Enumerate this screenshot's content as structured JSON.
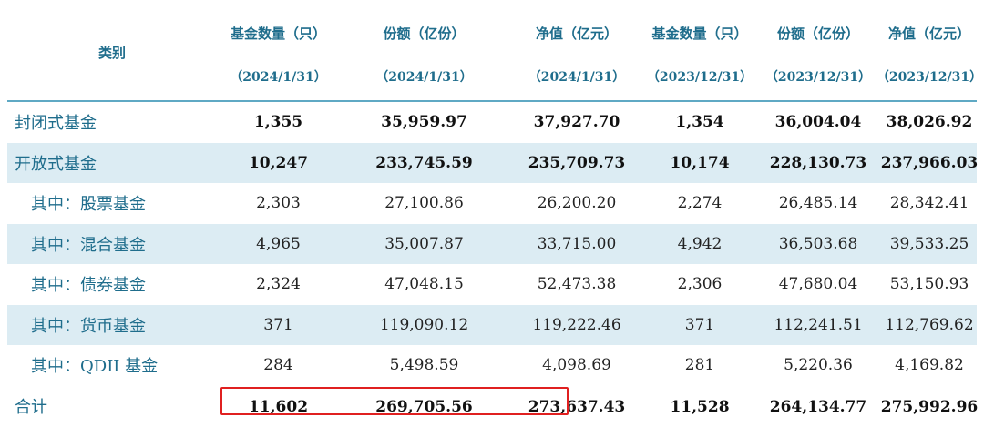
{
  "header": {
    "category": "类别",
    "columns": [
      {
        "title": "基金数量（只）",
        "date": "（2024/1/31）"
      },
      {
        "title": "份额（亿份）",
        "date": "（2024/1/31）"
      },
      {
        "title": "净值（亿元）",
        "date": "（2024/1/31）"
      },
      {
        "title": "基金数量（只）",
        "date": "（2023/12/31）"
      },
      {
        "title": "份额（亿份）",
        "date": "（2023/12/31）"
      },
      {
        "title": "净值（亿元）",
        "date": "（2023/12/31）"
      }
    ]
  },
  "rows": [
    {
      "name": "封闭式基金",
      "values": [
        "1,355",
        "35,959.97",
        "37,927.70",
        "1,354",
        "36,004.04",
        "38,026.92"
      ]
    },
    {
      "name": "开放式基金",
      "values": [
        "10,247",
        "233,745.59",
        "235,709.73",
        "10,174",
        "228,130.73",
        "237,966.03"
      ]
    },
    {
      "name": "其中：股票基金",
      "values": [
        "2,303",
        "27,100.86",
        "26,200.20",
        "2,274",
        "26,485.14",
        "28,342.41"
      ]
    },
    {
      "name": "其中：混合基金",
      "values": [
        "4,965",
        "35,007.87",
        "33,715.00",
        "4,942",
        "36,503.68",
        "39,533.25"
      ]
    },
    {
      "name": "其中：债券基金",
      "values": [
        "2,324",
        "47,048.15",
        "52,473.38",
        "2,306",
        "47,680.04",
        "53,150.93"
      ]
    },
    {
      "name": "其中：货币基金",
      "values": [
        "371",
        "119,090.12",
        "119,222.46",
        "371",
        "112,241.51",
        "112,769.62"
      ]
    },
    {
      "name": "其中：QDII 基金",
      "values": [
        "284",
        "5,498.59",
        "4,098.69",
        "281",
        "5,220.36",
        "4,169.82"
      ]
    },
    {
      "name": "合计",
      "values": [
        "11,602",
        "269,705.56",
        "273,637.43",
        "11,528",
        "264,134.77",
        "275,992.96"
      ]
    }
  ],
  "colors": {
    "header_text": "#1f6d8c",
    "row_shade": "#dcecf3",
    "highlight_border": "#e02020"
  }
}
